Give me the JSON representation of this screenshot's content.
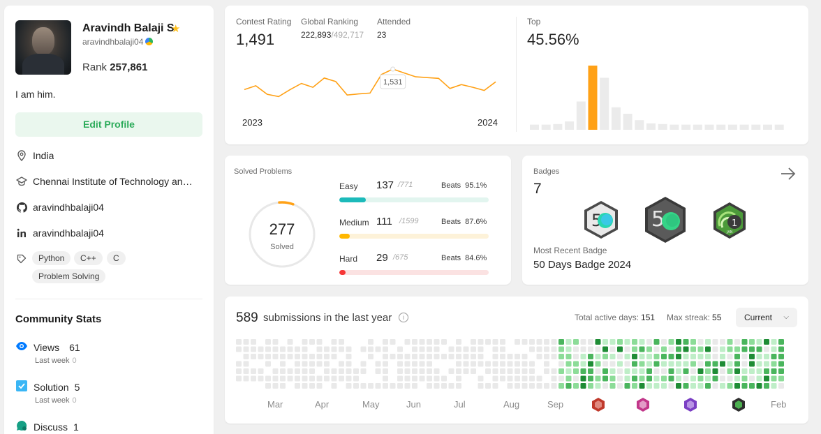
{
  "profile": {
    "name": "Aravindh Balaji S",
    "handle": "aravindhbalaji04",
    "rank_label": "Rank",
    "rank_value": "257,861",
    "bio": "I am him.",
    "edit_label": "Edit Profile",
    "location": "India",
    "school": "Chennai Institute of Technology and ...",
    "github": "aravindhbalaji04",
    "linkedin": "aravindhbalaji04",
    "skills": [
      "Python",
      "C++",
      "C",
      "Problem Solving"
    ]
  },
  "community": {
    "title": "Community Stats",
    "items": [
      {
        "label": "Views",
        "value": "61",
        "sub_label": "Last week",
        "sub_value": "0",
        "icon": "eye-icon",
        "color": "#007aff"
      },
      {
        "label": "Solution",
        "value": "5",
        "sub_label": "Last week",
        "sub_value": "0",
        "icon": "checkbox-icon",
        "color": "#3ab6f5"
      },
      {
        "label": "Discuss",
        "value": "1",
        "icon": "chat-icon",
        "color": "#16a085"
      }
    ]
  },
  "contest": {
    "rating_label": "Contest Rating",
    "rating_value": "1,491",
    "global_label": "Global Ranking",
    "global_value": "222,893",
    "global_total": "/492,717",
    "attended_label": "Attended",
    "attended_value": "23",
    "top_label": "Top",
    "top_value": "45.56%",
    "chart_start": "2023",
    "chart_end": "2024",
    "tooltip": "1,531"
  },
  "chart_data": [
    {
      "type": "line",
      "x": [
        1,
        2,
        3,
        4,
        5,
        6,
        7,
        8,
        9,
        10,
        11,
        12,
        13,
        14,
        15,
        16,
        17,
        18,
        19,
        20,
        21,
        22,
        23
      ],
      "values": [
        1478,
        1488,
        1466,
        1460,
        1478,
        1494,
        1484,
        1508,
        1499,
        1464,
        1467,
        1469,
        1517,
        1531,
        1521,
        1511,
        1509,
        1507,
        1481,
        1491,
        1484,
        1476,
        1498
      ],
      "xlabel": "",
      "ylabel": "",
      "tick_labels": [
        "2023",
        "2024"
      ],
      "highlight": {
        "index": 13,
        "label": "1,531"
      },
      "color": "#ffa116"
    },
    {
      "type": "bar",
      "values": [
        0.08,
        0.08,
        0.09,
        0.13,
        0.44,
        1.0,
        0.81,
        0.35,
        0.25,
        0.15,
        0.1,
        0.09,
        0.08,
        0.08,
        0.08,
        0.08,
        0.08,
        0.08,
        0.08,
        0.08,
        0.08,
        0.08
      ],
      "highlight_index": 5,
      "color": "#ebebeb",
      "highlight_color": "#ffa116"
    }
  ],
  "solved": {
    "title": "Solved Problems",
    "total": "277",
    "total_label": "Solved",
    "ring_fraction": 0.07,
    "rows": [
      {
        "name": "Easy",
        "count": "137",
        "total": "/771",
        "beats_label": "Beats",
        "beats": "95.1%",
        "fraction": 0.178,
        "color": "#1cbaba",
        "track": "#e2f5ef"
      },
      {
        "name": "Medium",
        "count": "111",
        "total": "/1599",
        "beats_label": "Beats",
        "beats": "87.6%",
        "fraction": 0.069,
        "color": "#ffb700",
        "track": "#fdf2d9"
      },
      {
        "name": "Hard",
        "count": "29",
        "total": "/675",
        "beats_label": "Beats",
        "beats": "84.6%",
        "fraction": 0.043,
        "color": "#f63737",
        "track": "#fbe2e2"
      }
    ]
  },
  "badges": {
    "title": "Badges",
    "count": "7",
    "recent_label": "Most Recent Badge",
    "recent_name": "50 Days Badge 2024"
  },
  "calendar": {
    "count": "589",
    "text": "submissions in the last year",
    "active_label": "Total active days:",
    "active_value": "151",
    "streak_label": "Max streak:",
    "streak_value": "55",
    "dropdown": "Current",
    "months": [
      "Mar",
      "Apr",
      "May",
      "Jun",
      "Jul",
      "Aug",
      "Sep",
      "Feb"
    ]
  }
}
